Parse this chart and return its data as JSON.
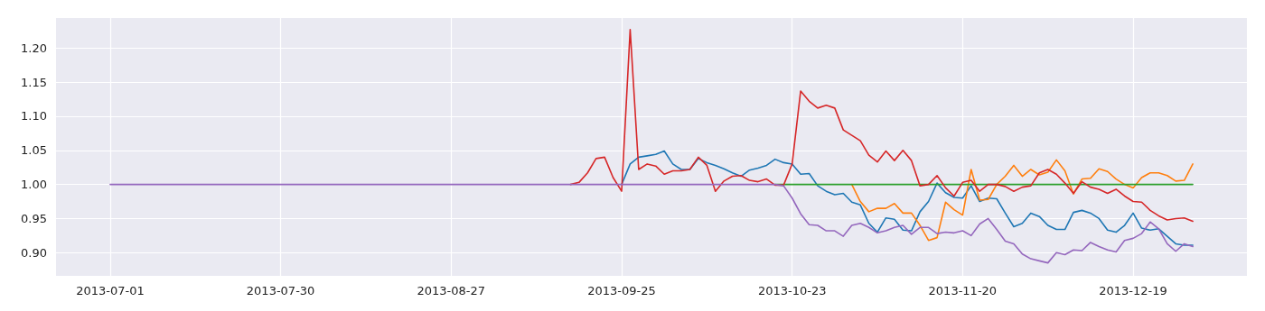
{
  "chart_data": {
    "type": "line",
    "ylim": [
      0.866,
      1.244
    ],
    "categories": [
      "2013-07-01",
      null,
      null,
      null,
      null,
      null,
      null,
      null,
      null,
      null,
      null,
      null,
      null,
      null,
      null,
      null,
      null,
      null,
      null,
      null,
      "2013-07-30",
      null,
      null,
      null,
      null,
      null,
      null,
      null,
      null,
      null,
      null,
      null,
      null,
      null,
      null,
      null,
      null,
      null,
      null,
      null,
      "2013-08-27",
      null,
      null,
      null,
      null,
      null,
      null,
      null,
      null,
      null,
      null,
      null,
      null,
      null,
      null,
      null,
      null,
      null,
      null,
      null,
      "2013-09-25",
      null,
      null,
      null,
      null,
      null,
      null,
      null,
      null,
      null,
      null,
      null,
      null,
      null,
      null,
      null,
      null,
      null,
      null,
      null,
      "2013-10-23",
      null,
      null,
      null,
      null,
      null,
      null,
      null,
      null,
      null,
      null,
      null,
      null,
      null,
      null,
      null,
      null,
      null,
      null,
      null,
      "2013-11-20",
      null,
      null,
      null,
      null,
      null,
      null,
      null,
      null,
      null,
      null,
      null,
      null,
      null,
      null,
      null,
      null,
      null,
      null,
      null,
      "2013-12-19",
      null,
      null,
      null,
      null,
      null,
      null,
      null
    ],
    "yticks": [
      {
        "value": 0.9,
        "label": "0.90"
      },
      {
        "value": 0.95,
        "label": "0.95"
      },
      {
        "value": 1.0,
        "label": "1.00"
      },
      {
        "value": 1.05,
        "label": "1.05"
      },
      {
        "value": 1.1,
        "label": "1.10"
      },
      {
        "value": 1.15,
        "label": "1.15"
      },
      {
        "value": 1.2,
        "label": "1.20"
      }
    ],
    "grid": true,
    "legend": false,
    "marker": "none",
    "line_style": "solid",
    "series": [
      {
        "color": "#1f77b4",
        "values": [
          null,
          null,
          null,
          null,
          null,
          null,
          null,
          null,
          null,
          null,
          null,
          null,
          null,
          null,
          null,
          null,
          null,
          null,
          null,
          null,
          null,
          null,
          null,
          null,
          null,
          null,
          null,
          null,
          null,
          null,
          null,
          null,
          null,
          null,
          null,
          null,
          null,
          null,
          null,
          null,
          null,
          null,
          null,
          null,
          null,
          null,
          null,
          null,
          null,
          null,
          null,
          null,
          null,
          null,
          null,
          null,
          null,
          null,
          null,
          null,
          1,
          1.03,
          1.04,
          1.042,
          1.044,
          1.049,
          1.03,
          1.022,
          1.022,
          1.038,
          1.032,
          1.028,
          1.023,
          1.017,
          1.012,
          1.021,
          1.024,
          1.028,
          1.037,
          1.032,
          1.03,
          1.015,
          1.016,
          0.998,
          0.99,
          0.985,
          0.987,
          0.974,
          0.97,
          0.943,
          0.93,
          0.951,
          0.949,
          0.933,
          0.932,
          0.96,
          0.975,
          1.002,
          0.988,
          0.981,
          0.98,
          0.998,
          0.975,
          0.98,
          0.979,
          0.958,
          0.938,
          0.943,
          0.958,
          0.953,
          0.94,
          0.934,
          0.934,
          0.959,
          0.962,
          0.958,
          0.95,
          0.933,
          0.93,
          0.94,
          0.958,
          0.936,
          0.933,
          0.935,
          0.924,
          0.913,
          0.911,
          0.911
        ]
      },
      {
        "color": "#ff7f0e",
        "values": [
          null,
          null,
          null,
          null,
          null,
          null,
          null,
          null,
          null,
          null,
          null,
          null,
          null,
          null,
          null,
          null,
          null,
          null,
          null,
          null,
          null,
          null,
          null,
          null,
          null,
          null,
          null,
          null,
          null,
          null,
          null,
          null,
          null,
          null,
          null,
          null,
          null,
          null,
          null,
          null,
          null,
          null,
          null,
          null,
          null,
          null,
          null,
          null,
          null,
          null,
          null,
          null,
          null,
          null,
          null,
          null,
          null,
          null,
          null,
          null,
          null,
          null,
          null,
          null,
          null,
          null,
          null,
          null,
          null,
          null,
          null,
          null,
          null,
          null,
          null,
          null,
          null,
          null,
          null,
          null,
          null,
          null,
          null,
          null,
          null,
          null,
          null,
          1,
          0.975,
          0.96,
          0.965,
          0.965,
          0.972,
          0.958,
          0.958,
          0.94,
          0.918,
          0.922,
          0.974,
          0.963,
          0.955,
          1.022,
          0.977,
          0.978,
          1.0,
          1.012,
          1.028,
          1.012,
          1.022,
          1.014,
          1.018,
          1.036,
          1.02,
          0.986,
          1.008,
          1.009,
          1.023,
          1.019,
          1.008,
          1.0,
          0.995,
          1.01,
          1.017,
          1.017,
          1.013,
          1.005,
          1.006,
          1.03
        ]
      },
      {
        "color": "#2ca02c",
        "values": [
          null,
          null,
          null,
          null,
          null,
          null,
          null,
          null,
          null,
          null,
          null,
          null,
          null,
          null,
          null,
          null,
          null,
          null,
          null,
          null,
          null,
          null,
          null,
          null,
          null,
          null,
          null,
          null,
          null,
          null,
          null,
          null,
          null,
          null,
          null,
          null,
          null,
          null,
          null,
          null,
          null,
          null,
          null,
          null,
          null,
          null,
          null,
          null,
          null,
          null,
          null,
          null,
          null,
          null,
          null,
          null,
          null,
          null,
          null,
          null,
          null,
          null,
          null,
          null,
          null,
          null,
          null,
          null,
          null,
          null,
          null,
          null,
          null,
          null,
          null,
          null,
          null,
          null,
          1,
          1,
          1,
          1,
          1,
          1,
          1,
          1,
          1,
          1,
          1,
          1,
          1,
          1,
          1,
          1,
          1,
          1,
          1,
          1,
          1,
          1,
          1,
          1,
          1,
          1,
          1,
          1,
          1,
          1,
          1,
          1,
          1,
          1,
          1,
          1,
          1,
          1,
          1,
          1,
          1,
          1,
          1,
          1,
          1,
          1,
          1,
          1,
          1,
          1
        ]
      },
      {
        "color": "#d62728",
        "values": [
          null,
          null,
          null,
          null,
          null,
          null,
          null,
          null,
          null,
          null,
          null,
          null,
          null,
          null,
          null,
          null,
          null,
          null,
          null,
          null,
          null,
          null,
          null,
          null,
          null,
          null,
          null,
          null,
          null,
          null,
          null,
          null,
          null,
          null,
          null,
          null,
          null,
          null,
          null,
          null,
          null,
          null,
          null,
          null,
          null,
          null,
          null,
          null,
          null,
          null,
          null,
          null,
          null,
          null,
          1,
          1.003,
          1.017,
          1.038,
          1.04,
          1.01,
          0.99,
          1.227,
          1.022,
          1.03,
          1.027,
          1.015,
          1.02,
          1.02,
          1.022,
          1.04,
          1.028,
          0.99,
          1.005,
          1.012,
          1.013,
          1.006,
          1.004,
          1.008,
          0.999,
          0.999,
          1.03,
          1.137,
          1.122,
          1.112,
          1.116,
          1.112,
          1.08,
          1.072,
          1.064,
          1.043,
          1.033,
          1.049,
          1.035,
          1.05,
          1.035,
          0.998,
          1.0,
          1.013,
          0.995,
          0.983,
          1.003,
          1.006,
          0.99,
          1.0,
          1.0,
          0.997,
          0.99,
          0.996,
          0.998,
          1.017,
          1.022,
          1.015,
          1.002,
          0.987,
          1.004,
          0.996,
          0.993,
          0.987,
          0.993,
          0.983,
          0.975,
          0.974,
          0.962,
          0.954,
          0.948,
          0.95,
          0.951,
          0.946
        ]
      },
      {
        "color": "#9467bd",
        "values": [
          1,
          1,
          1,
          1,
          1,
          1,
          1,
          1,
          1,
          1,
          1,
          1,
          1,
          1,
          1,
          1,
          1,
          1,
          1,
          1,
          1,
          1,
          1,
          1,
          1,
          1,
          1,
          1,
          1,
          1,
          1,
          1,
          1,
          1,
          1,
          1,
          1,
          1,
          1,
          1,
          1,
          1,
          1,
          1,
          1,
          1,
          1,
          1,
          1,
          1,
          1,
          1,
          1,
          1,
          1,
          1,
          1,
          1,
          1,
          1,
          1,
          1,
          1,
          1,
          1,
          1,
          1,
          1,
          1,
          1,
          1,
          1,
          1,
          1,
          1,
          1,
          1,
          1,
          1,
          0.998,
          0.98,
          0.957,
          0.941,
          0.94,
          0.932,
          0.932,
          0.924,
          0.94,
          0.943,
          0.937,
          0.929,
          0.932,
          0.937,
          0.94,
          0.927,
          0.937,
          0.937,
          0.928,
          0.93,
          0.929,
          0.932,
          0.925,
          0.942,
          0.95,
          0.934,
          0.917,
          0.913,
          0.898,
          0.891,
          0.888,
          0.885,
          0.9,
          0.897,
          0.904,
          0.903,
          0.915,
          0.909,
          0.904,
          0.901,
          0.918,
          0.921,
          0.928,
          0.945,
          0.935,
          0.913,
          0.902,
          0.913,
          0.909
        ]
      }
    ]
  }
}
